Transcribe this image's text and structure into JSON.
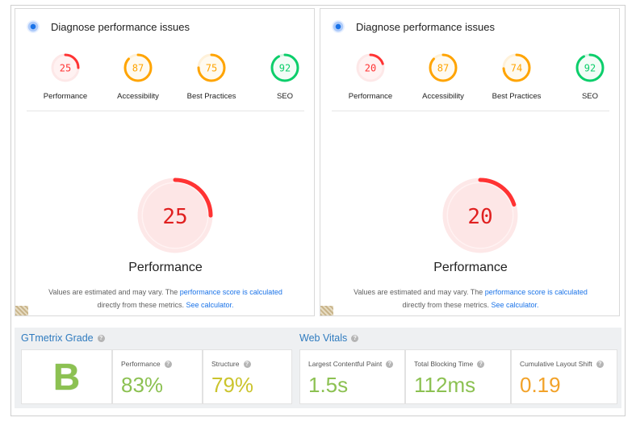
{
  "panels": [
    {
      "title": "Diagnose performance issues",
      "gauges": [
        {
          "label": "Performance",
          "score": 25,
          "color": "#ff3333",
          "track": "#fde8e8",
          "fill": "#fff2f2"
        },
        {
          "label": "Accessibility",
          "score": 87,
          "color": "#ffa400",
          "track": "#fff1d9",
          "fill": "#fffaf0"
        },
        {
          "label": "Best Practices",
          "score": 75,
          "color": "#ffa400",
          "track": "#fff1d9",
          "fill": "#fffaf0"
        },
        {
          "label": "SEO",
          "score": 92,
          "color": "#0cce6b",
          "track": "#d6f5e4",
          "fill": "#f3fcf7"
        }
      ],
      "main_label": "Performance",
      "main_score": 25,
      "note_text_1": "Values are estimated and may vary. The ",
      "note_link_1": "performance score is calculated",
      "note_text_2": "directly from these metrics. ",
      "note_link_2": "See calculator.",
      "logo_icon": "lighthouse-icon"
    },
    {
      "title": "Diagnose performance issues",
      "gauges": [
        {
          "label": "Performance",
          "score": 20,
          "color": "#ff3333",
          "track": "#fde8e8",
          "fill": "#fff2f2"
        },
        {
          "label": "Accessibility",
          "score": 87,
          "color": "#ffa400",
          "track": "#fff1d9",
          "fill": "#fffaf0"
        },
        {
          "label": "Best Practices",
          "score": 74,
          "color": "#ffa400",
          "track": "#fff1d9",
          "fill": "#fffaf0"
        },
        {
          "label": "SEO",
          "score": 92,
          "color": "#0cce6b",
          "track": "#d6f5e4",
          "fill": "#f3fcf7"
        }
      ],
      "main_label": "Performance",
      "main_score": 20,
      "note_text_1": "Values are estimated and may vary. The ",
      "note_link_1": "performance score is calculated",
      "note_text_2": "directly from these metrics. ",
      "note_link_2": "See calculator.",
      "logo_icon": "lighthouse-icon"
    }
  ],
  "gtmetrix": {
    "grade_title": "GTmetrix Grade",
    "grade": "B",
    "performance_label": "Performance",
    "performance_value": "83%",
    "structure_label": "Structure",
    "structure_value": "79%",
    "help_icon": "question-mark-icon",
    "help_glyph": "?"
  },
  "web_vitals": {
    "title": "Web Vitals",
    "lcp_label": "Largest Contentful Paint",
    "lcp_value": "1.5s",
    "tbt_label": "Total Blocking Time",
    "tbt_value": "112ms",
    "cls_label": "Cumulative Layout Shift",
    "cls_value": "0.19"
  },
  "colors": {
    "good": "#8cc152",
    "average": "#cbc42d",
    "warn": "#f2a229",
    "link": "#1a73e8",
    "heading_blue": "#2f7bbf"
  }
}
